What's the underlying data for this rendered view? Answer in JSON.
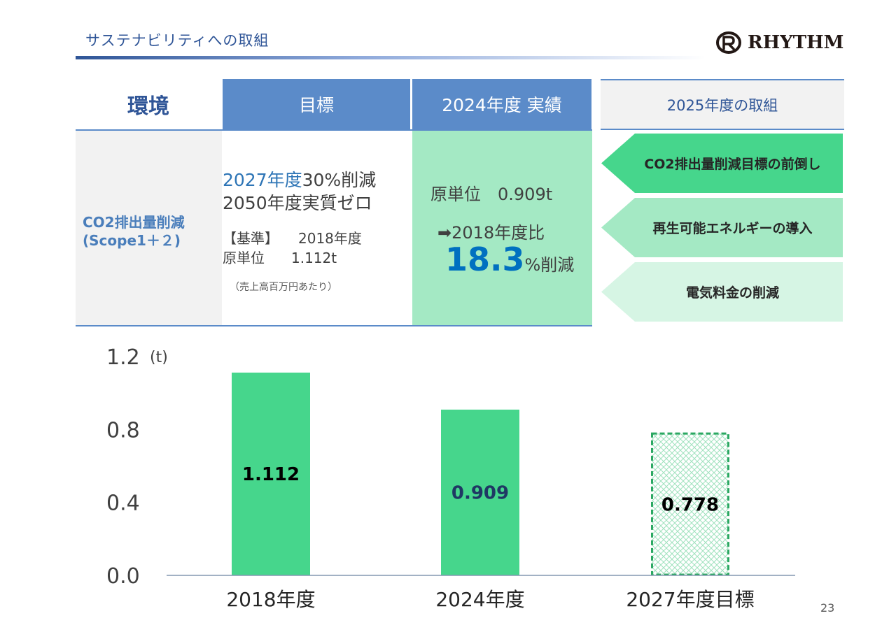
{
  "header": {
    "title": "サステナビリティへの取組",
    "logo_text": "RHYTHM"
  },
  "table": {
    "col_env": "環境",
    "col_goal": "目標",
    "col_result": "2024年度 実績",
    "col_plan": "2025年度の取組",
    "row_label_1": "CO2排出量削減",
    "row_label_2": "(Scope1＋２)",
    "goal_line1_year": "2027年度",
    "goal_line1_rest": "30%削減",
    "goal_line2": "2050年度実質ゼロ",
    "base_label": "【基準】",
    "base_year": "2018年度",
    "base_unit_label": "原単位",
    "base_unit_value": "1.112t",
    "base_note": "（売上高百万円あたり）",
    "result_label": "原単位",
    "result_value": "0.909t",
    "result_compare": "➡2018年度比",
    "result_big": "18.3",
    "result_pct": "%削減"
  },
  "plans": [
    {
      "label": "CO2排出量削減目標の前倒し",
      "color": "#46D68C"
    },
    {
      "label": "再生可能エネルギーの導入",
      "color": "#A4E9C4"
    },
    {
      "label": "電気料金の削減",
      "color": "#D6F5E4"
    }
  ],
  "chart_data": {
    "type": "bar",
    "categories": [
      "2018年度",
      "2024年度",
      "2027年度目標"
    ],
    "values": [
      1.112,
      0.909,
      0.778
    ],
    "labels": [
      "1.112",
      "0.909",
      "0.778"
    ],
    "label_colors": [
      "#000000",
      "#1F3864",
      "#000000"
    ],
    "styles": [
      "solid",
      "solid",
      "target"
    ],
    "unit": "(t)",
    "ylim": [
      0,
      1.2
    ],
    "yticks": [
      "0.0",
      "0.4",
      "0.8",
      "1.2"
    ],
    "ytick_values": [
      0,
      0.4,
      0.8,
      1.2
    ],
    "bar_color": "#46D68C",
    "target_border": "#2BA862"
  },
  "footer": {
    "page_number": "23"
  }
}
